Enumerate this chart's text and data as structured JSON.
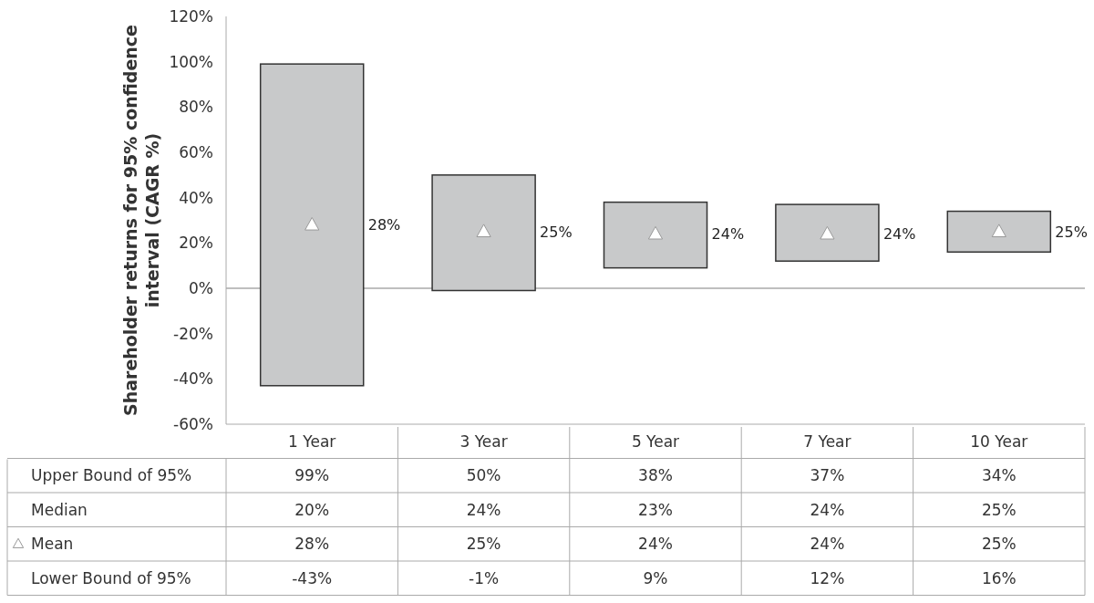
{
  "chart_data": {
    "type": "bar",
    "ylabel": "Shareholder returns for 95% confidence interval (CAGR %)",
    "categories": [
      "1 Year",
      "3 Year",
      "5 Year",
      "7 Year",
      "10 Year"
    ],
    "ylim": [
      -60,
      120
    ],
    "yticks": [
      {
        "value": -60,
        "label": "-60%"
      },
      {
        "value": -40,
        "label": "-40%"
      },
      {
        "value": -20,
        "label": "-20%"
      },
      {
        "value": 0,
        "label": "0%"
      },
      {
        "value": 20,
        "label": "20%"
      },
      {
        "value": 40,
        "label": "40%"
      },
      {
        "value": 60,
        "label": "60%"
      },
      {
        "value": 80,
        "label": "80%"
      },
      {
        "value": 100,
        "label": "100%"
      },
      {
        "value": 120,
        "label": "120%"
      }
    ],
    "series": [
      {
        "color": "#c8c9ca",
        "base": [
          -43,
          -1,
          9,
          12,
          16
        ],
        "values": [
          142,
          51,
          29,
          25,
          18
        ]
      },
      {
        "name": "Mean",
        "type": "scatter",
        "marker": "triangle",
        "color": "#ffffff",
        "data_labels": true,
        "values": [
          28,
          25,
          24,
          24,
          25
        ],
        "value_labels": [
          "28%",
          "25%",
          "24%",
          "24%",
          "25%"
        ]
      }
    ],
    "annotations": [
      "Upper Bound of 95%",
      "99%",
      "50%",
      "38%",
      "37%",
      "34%",
      "Median",
      "20%",
      "24%",
      "23%",
      "24%",
      "25%",
      "Lower Bound of 95%",
      "-43%",
      "-1%",
      "9%",
      "12%",
      "16%"
    ]
  }
}
